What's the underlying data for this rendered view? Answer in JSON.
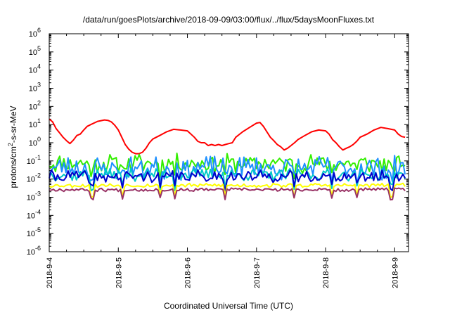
{
  "chart_data": {
    "type": "line",
    "title": "/data/run/goesPlots/archive/2018-09-09/03:00/flux/../flux/5daysMoonFluxes.txt",
    "xlabel": "Coordinated Universal Time (UTC)",
    "ylabel": {
      "base": "protons/cm",
      "sup": "2",
      "rest": "-s-sr-MeV"
    },
    "yscale": "log",
    "ylim_exp": [
      -6,
      6
    ],
    "xlim_days": [
      0,
      5.2
    ],
    "x_ticks": [
      "2018-9-4",
      "2018-9-5",
      "2018-9-6",
      "2018-9-7",
      "2018-9-8",
      "2018-9-9"
    ],
    "y_ticks": [
      {
        "base": "10",
        "exp": "6"
      },
      {
        "base": "10",
        "exp": "5"
      },
      {
        "base": "10",
        "exp": "4"
      },
      {
        "base": "10",
        "exp": "3"
      },
      {
        "base": "10",
        "exp": "2"
      },
      {
        "base": "10",
        "exp": "1"
      },
      {
        "base": "10",
        "exp": "0"
      },
      {
        "base": "10",
        "exp": "-1"
      },
      {
        "base": "10",
        "exp": "-2"
      },
      {
        "base": "10",
        "exp": "-3"
      },
      {
        "base": "10",
        "exp": "-4"
      },
      {
        "base": "10",
        "exp": "-5"
      },
      {
        "base": "10",
        "exp": "-6"
      }
    ],
    "x_unit": "days since 2018-9-4 00:00 UTC",
    "grid": false,
    "series": [
      {
        "color": "#ff0000",
        "style": "smooth",
        "points": [
          [
            0.0,
            20
          ],
          [
            0.05,
            14
          ],
          [
            0.1,
            6
          ],
          [
            0.15,
            3.5
          ],
          [
            0.2,
            2
          ],
          [
            0.25,
            1.3
          ],
          [
            0.3,
            0.9
          ],
          [
            0.35,
            1.4
          ],
          [
            0.4,
            2.5
          ],
          [
            0.45,
            3
          ],
          [
            0.5,
            5
          ],
          [
            0.55,
            8
          ],
          [
            0.6,
            10
          ],
          [
            0.7,
            15
          ],
          [
            0.8,
            18
          ],
          [
            0.85,
            17
          ],
          [
            0.9,
            14
          ],
          [
            0.95,
            9
          ],
          [
            1.0,
            5
          ],
          [
            1.05,
            2
          ],
          [
            1.1,
            0.8
          ],
          [
            1.15,
            0.45
          ],
          [
            1.2,
            0.3
          ],
          [
            1.25,
            0.25
          ],
          [
            1.3,
            0.25
          ],
          [
            1.35,
            0.3
          ],
          [
            1.4,
            0.5
          ],
          [
            1.45,
            1
          ],
          [
            1.5,
            1.6
          ],
          [
            1.6,
            2.5
          ],
          [
            1.7,
            4
          ],
          [
            1.8,
            5.5
          ],
          [
            1.9,
            5
          ],
          [
            2.0,
            4.5
          ],
          [
            2.05,
            3
          ],
          [
            2.1,
            2
          ],
          [
            2.15,
            1.2
          ],
          [
            2.2,
            1
          ],
          [
            2.25,
            1
          ],
          [
            2.3,
            0.7
          ],
          [
            2.35,
            0.8
          ],
          [
            2.4,
            0.7
          ],
          [
            2.45,
            0.8
          ],
          [
            2.5,
            0.7
          ],
          [
            2.55,
            0.8
          ],
          [
            2.6,
            0.9
          ],
          [
            2.65,
            1
          ],
          [
            2.7,
            2
          ],
          [
            2.8,
            4
          ],
          [
            2.9,
            7
          ],
          [
            3.0,
            12
          ],
          [
            3.05,
            13
          ],
          [
            3.1,
            8
          ],
          [
            3.15,
            4
          ],
          [
            3.2,
            2
          ],
          [
            3.25,
            1.3
          ],
          [
            3.3,
            0.8
          ],
          [
            3.35,
            0.6
          ],
          [
            3.4,
            0.4
          ],
          [
            3.45,
            0.5
          ],
          [
            3.5,
            0.7
          ],
          [
            3.55,
            1
          ],
          [
            3.6,
            1.5
          ],
          [
            3.7,
            2.5
          ],
          [
            3.8,
            4
          ],
          [
            3.9,
            5
          ],
          [
            4.0,
            4.5
          ],
          [
            4.05,
            3
          ],
          [
            4.1,
            1.5
          ],
          [
            4.15,
            1
          ],
          [
            4.2,
            0.6
          ],
          [
            4.25,
            0.4
          ],
          [
            4.3,
            0.5
          ],
          [
            4.35,
            0.6
          ],
          [
            4.4,
            0.8
          ],
          [
            4.45,
            1.2
          ],
          [
            4.5,
            2
          ],
          [
            4.6,
            3
          ],
          [
            4.7,
            5
          ],
          [
            4.8,
            7
          ],
          [
            4.9,
            6
          ],
          [
            5.0,
            5
          ],
          [
            5.05,
            3
          ],
          [
            5.1,
            2.2
          ],
          [
            5.15,
            2
          ]
        ]
      },
      {
        "color": "#33ee00",
        "style": "spiky",
        "base": 0.075,
        "spread": 0.55,
        "seed": 11,
        "dipAmp": 0.5
      },
      {
        "color": "#1e90ff",
        "style": "spiky",
        "base": 0.04,
        "spread": 0.7,
        "seed": 23,
        "dipAmp": 0.6
      },
      {
        "color": "#00c8c8",
        "style": "spiky",
        "base": 0.017,
        "spread": 0.35,
        "seed": 37,
        "dipAmp": 0.7
      },
      {
        "color": "#0000cc",
        "style": "spiky",
        "base": 0.014,
        "spread": 0.35,
        "seed": 41,
        "dipAmp": 0.6
      },
      {
        "color": "#ffff00",
        "style": "spiky",
        "base": 0.0045,
        "spread": 0.12,
        "seed": 53,
        "dipAmp": 0.6
      },
      {
        "color": "#993366",
        "style": "spiky",
        "base": 0.0026,
        "spread": 0.1,
        "seed": 67,
        "dipAmp": 0.5
      }
    ],
    "dip_days": [
      0.62,
      1.05,
      1.6,
      1.82,
      2.55,
      3.55,
      4.1,
      4.45,
      4.95
    ]
  }
}
